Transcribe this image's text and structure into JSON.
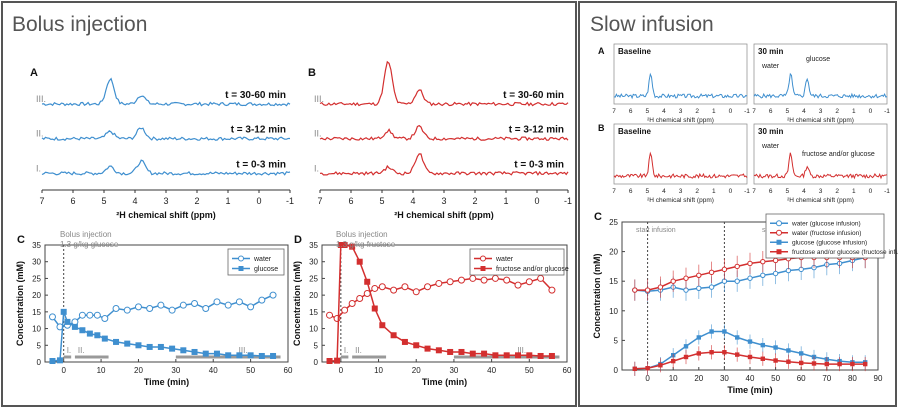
{
  "sections": {
    "bolus_title": "Bolus injection",
    "infusion_title": "Slow infusion"
  },
  "colors": {
    "blue": "#3f8fcf",
    "red": "#d32f2f",
    "gray": "#888888"
  },
  "chart_data": [
    {
      "id": "A",
      "type": "line",
      "letter": "A",
      "title": "",
      "xlabel": "²H chemical shift (ppm)",
      "xticks": [
        "7",
        "6",
        "5",
        "4",
        "3",
        "2",
        "1",
        "0",
        "-1"
      ],
      "xlim": [
        7,
        -1
      ],
      "traces": [
        {
          "roman": "III.",
          "label": "t = 30-60 min",
          "peaks": [
            [
              4.8,
              25
            ],
            [
              3.8,
              9
            ]
          ]
        },
        {
          "roman": "II.",
          "label": "t = 3-12 min",
          "peaks": [
            [
              4.8,
              7
            ],
            [
              3.8,
              11
            ]
          ]
        },
        {
          "roman": "I.",
          "label": "t = 0-3 min",
          "peaks": [
            [
              4.8,
              7
            ],
            [
              3.8,
              12
            ]
          ]
        }
      ]
    },
    {
      "id": "B",
      "type": "line",
      "letter": "B",
      "title": "",
      "xlabel": "²H chemical shift (ppm)",
      "xticks": [
        "7",
        "6",
        "5",
        "4",
        "3",
        "2",
        "1",
        "0",
        "-1"
      ],
      "xlim": [
        7,
        -1
      ],
      "traces": [
        {
          "roman": "III.",
          "label": "t = 30-60 min",
          "peaks": [
            [
              4.8,
              42
            ],
            [
              3.8,
              14
            ]
          ]
        },
        {
          "roman": "II.",
          "label": "t = 3-12 min",
          "peaks": [
            [
              4.8,
              8
            ],
            [
              3.8,
              12
            ]
          ]
        },
        {
          "roman": "I.",
          "label": "t = 0-3 min",
          "peaks": [
            [
              4.8,
              6
            ],
            [
              3.8,
              20
            ]
          ]
        }
      ]
    },
    {
      "id": "C",
      "type": "line",
      "letter": "C",
      "annotation": [
        "Bolus injection",
        "1.3 g/kg glucose"
      ],
      "xlabel": "Time (min)",
      "ylabel": "Concentration (mM)",
      "xlim": [
        -5,
        60
      ],
      "ylim": [
        0,
        35
      ],
      "xticks": [
        0,
        10,
        20,
        30,
        40,
        50,
        60
      ],
      "yticks": [
        0,
        5,
        10,
        15,
        20,
        25,
        30,
        35
      ],
      "periods": [
        {
          "label": "I.",
          "from": 0,
          "to": 2
        },
        {
          "label": "II.",
          "from": 3,
          "to": 12
        },
        {
          "label": "III.",
          "from": 30,
          "to": 58
        }
      ],
      "series": [
        {
          "name": "water",
          "filled": false,
          "x": [
            -3,
            -1,
            1,
            3,
            5,
            7,
            9,
            11,
            14,
            17,
            20,
            23,
            26,
            29,
            32,
            35,
            38,
            41,
            44,
            47,
            50,
            53,
            56
          ],
          "y": [
            13.5,
            10.5,
            11,
            12,
            14,
            14,
            14,
            13,
            16,
            15.5,
            16.5,
            16,
            17,
            15.5,
            17,
            17.5,
            16,
            18,
            17,
            18,
            16.5,
            18.5,
            20
          ]
        },
        {
          "name": "glucose",
          "filled": true,
          "x": [
            -3,
            -1,
            0,
            1,
            3,
            5,
            7,
            9,
            11,
            14,
            17,
            20,
            23,
            26,
            29,
            32,
            35,
            38,
            41,
            44,
            47,
            50,
            53,
            56
          ],
          "y": [
            0.3,
            0.5,
            15,
            12,
            10.5,
            9.5,
            8.5,
            8,
            7,
            6,
            5.5,
            5,
            4.5,
            4.5,
            4,
            3.5,
            3,
            2.5,
            2.5,
            2,
            2,
            2,
            1.8,
            1.8
          ]
        }
      ]
    },
    {
      "id": "D",
      "type": "line",
      "letter": "D",
      "annotation": [
        "Bolus injection",
        "1.3 g/kg fructose"
      ],
      "xlabel": "Time (min)",
      "ylabel": "Concentration (mM)",
      "xlim": [
        -5,
        60
      ],
      "ylim": [
        0,
        35
      ],
      "xticks": [
        0,
        10,
        20,
        30,
        40,
        50,
        60
      ],
      "yticks": [
        0,
        5,
        10,
        15,
        20,
        25,
        30,
        35
      ],
      "periods": [
        {
          "label": "I.",
          "from": 0,
          "to": 2
        },
        {
          "label": "II.",
          "from": 3,
          "to": 12
        },
        {
          "label": "III.",
          "from": 30,
          "to": 58
        }
      ],
      "series": [
        {
          "name": "water",
          "filled": false,
          "x": [
            -3,
            -1,
            1,
            3,
            5,
            7,
            9,
            11,
            14,
            17,
            20,
            23,
            26,
            29,
            32,
            35,
            38,
            41,
            44,
            47,
            50,
            53,
            56
          ],
          "y": [
            14,
            13,
            15.5,
            17.5,
            19,
            20.5,
            22,
            22.5,
            21.5,
            22.5,
            21,
            22.5,
            23.5,
            24,
            24.5,
            25,
            24.5,
            25,
            24.5,
            23,
            24,
            25,
            21.5
          ]
        },
        {
          "name": "fructose and/or glucose",
          "filled": true,
          "x": [
            -3,
            -1,
            0,
            1,
            3,
            5,
            7,
            9,
            11,
            14,
            17,
            20,
            23,
            26,
            29,
            32,
            35,
            38,
            41,
            44,
            47,
            50,
            53,
            56
          ],
          "y": [
            0.3,
            0.4,
            35,
            35,
            34.5,
            30,
            24,
            16,
            11,
            8,
            6,
            5,
            4,
            3.5,
            3,
            3,
            2.5,
            2.5,
            2,
            2,
            2,
            2,
            1.8,
            1.8
          ]
        }
      ]
    },
    {
      "id": "S-A",
      "type": "line",
      "letter": "A",
      "xlabel": "²H chemical shift (ppm)",
      "xticks": [
        "7",
        "6",
        "5",
        "4",
        "3",
        "2",
        "1",
        "0",
        "-1"
      ],
      "xlim": [
        7,
        -1
      ],
      "insets": [
        {
          "label": "Baseline",
          "peaks": [
            [
              4.8,
              22
            ]
          ],
          "annots": []
        },
        {
          "label": "30 min",
          "peaks": [
            [
              4.8,
              22
            ],
            [
              3.8,
              18
            ]
          ],
          "annots": [
            "water",
            "glucose"
          ]
        }
      ]
    },
    {
      "id": "S-B",
      "type": "line",
      "letter": "B",
      "xlabel": "²H chemical shift (ppm)",
      "xticks": [
        "7",
        "6",
        "5",
        "4",
        "3",
        "2",
        "1",
        "0",
        "-1"
      ],
      "xlim": [
        7,
        -1
      ],
      "insets": [
        {
          "label": "Baseline",
          "peaks": [
            [
              4.8,
              22
            ]
          ],
          "annots": []
        },
        {
          "label": "30 min",
          "peaks": [
            [
              4.8,
              22
            ],
            [
              3.8,
              10
            ]
          ],
          "annots": [
            "water",
            "fructose and/or glucose"
          ]
        }
      ]
    },
    {
      "id": "S-C",
      "type": "line",
      "letter": "C",
      "annotation_start": "start infusion",
      "annotation_stop": "stop infusion",
      "xlabel": "Time (min)",
      "ylabel": "Concentration (mM)",
      "xlim": [
        -10,
        90
      ],
      "ylim": [
        0,
        25
      ],
      "xticks": [
        0,
        10,
        20,
        30,
        40,
        50,
        60,
        70,
        80,
        90
      ],
      "yticks": [
        0,
        5,
        10,
        15,
        20,
        25
      ],
      "series": [
        {
          "name": "water (glucose infusion)",
          "color": "blue",
          "filled": false,
          "x": [
            -5,
            0,
            5,
            10,
            15,
            20,
            25,
            30,
            35,
            40,
            45,
            50,
            55,
            60,
            65,
            70,
            75,
            80,
            85
          ],
          "y": [
            13.5,
            13.3,
            13.5,
            14,
            13.5,
            13.8,
            14,
            15,
            15,
            15.5,
            16,
            16.3,
            16.8,
            17,
            17.3,
            17.8,
            18,
            18.5,
            19
          ]
        },
        {
          "name": "water (fructose infusion)",
          "color": "red",
          "filled": false,
          "x": [
            -5,
            0,
            5,
            10,
            15,
            20,
            25,
            30,
            35,
            40,
            45,
            50,
            55,
            60,
            65,
            70,
            75,
            80,
            85
          ],
          "y": [
            13.5,
            13.5,
            14,
            15,
            15.5,
            16,
            16.5,
            17,
            17.5,
            18,
            18.3,
            18.5,
            18.8,
            19,
            19,
            19,
            19,
            19,
            19
          ]
        },
        {
          "name": "glucose (glucose infusion)",
          "color": "blue",
          "filled": true,
          "x": [
            -5,
            0,
            5,
            10,
            15,
            20,
            25,
            30,
            35,
            40,
            45,
            50,
            55,
            60,
            65,
            70,
            75,
            80,
            85
          ],
          "y": [
            0.2,
            0.3,
            1,
            2.5,
            4,
            5.5,
            6.5,
            6.5,
            5.5,
            4.8,
            4.2,
            3.8,
            3.3,
            2.8,
            2.2,
            1.8,
            1.5,
            1.3,
            1.3
          ]
        },
        {
          "name": "fructose and/or glucose (fructose infusion)",
          "color": "red",
          "filled": true,
          "x": [
            -5,
            0,
            5,
            10,
            15,
            20,
            25,
            30,
            35,
            40,
            45,
            50,
            55,
            60,
            65,
            70,
            75,
            80,
            85
          ],
          "y": [
            0.2,
            0.3,
            0.8,
            1.5,
            2.2,
            2.8,
            3,
            3,
            2.6,
            2.2,
            1.9,
            1.6,
            1.4,
            1.2,
            1.1,
            1,
            1,
            1,
            1
          ]
        }
      ]
    }
  ]
}
